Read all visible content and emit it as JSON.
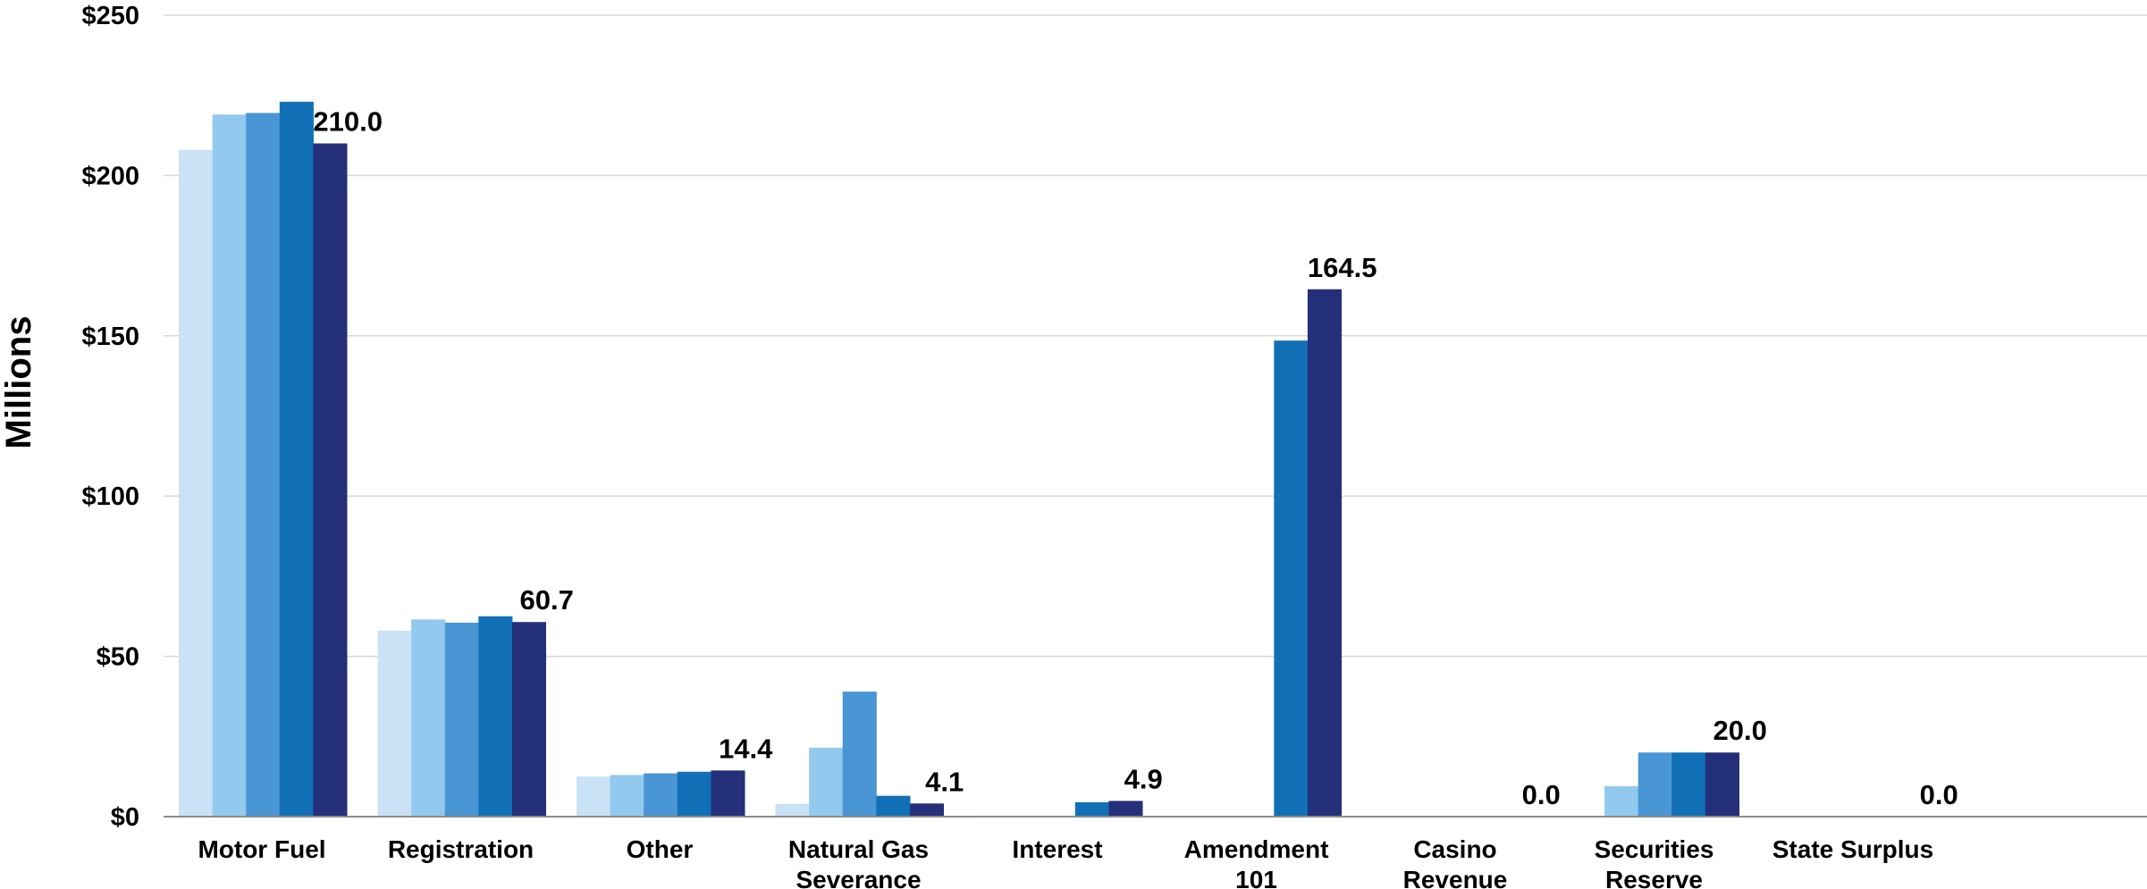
{
  "chart_data": {
    "type": "bar",
    "title": "",
    "xlabel": "",
    "ylabel": "Millions",
    "ylim": [
      0,
      250
    ],
    "yticks": [
      0,
      50,
      100,
      150,
      200,
      250
    ],
    "ytick_labels": [
      "$0",
      "$50",
      "$100",
      "$150",
      "$200",
      "$250"
    ],
    "grid": true,
    "legend": "none",
    "categories": [
      [
        "Motor Fuel"
      ],
      [
        "Registration"
      ],
      [
        "Other"
      ],
      [
        "Natural Gas",
        "Severance"
      ],
      [
        "Interest"
      ],
      [
        "Amendment",
        "101"
      ],
      [
        "Casino",
        "Revenue"
      ],
      [
        "Securities",
        "Reserve"
      ],
      [
        "State Surplus"
      ]
    ],
    "series": [
      {
        "color": "#c9e2f6",
        "values": [
          208,
          58,
          12.5,
          4,
          0.3,
          0,
          0,
          0,
          0
        ]
      },
      {
        "color": "#92c9ee",
        "values": [
          219,
          61.5,
          13,
          21.5,
          0.3,
          0,
          0,
          9.5,
          0
        ]
      },
      {
        "color": "#4a95d3",
        "values": [
          219.5,
          60.5,
          13.5,
          39,
          0.3,
          0,
          0,
          20,
          0
        ]
      },
      {
        "color": "#1170b5",
        "values": [
          223,
          62.5,
          14,
          6.5,
          4.5,
          148.5,
          0,
          20,
          0
        ]
      },
      {
        "color": "#24307a",
        "values": [
          210,
          60.7,
          14.4,
          4.1,
          4.9,
          164.5,
          0,
          20,
          0
        ]
      }
    ],
    "data_labels": [
      "210.0",
      "60.7",
      "14.4",
      "4.1",
      "4.9",
      "164.5",
      "0.0",
      "20.0",
      "0.0"
    ]
  }
}
